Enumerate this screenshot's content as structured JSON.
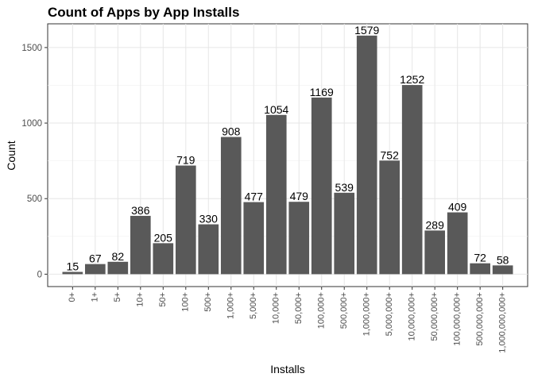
{
  "chart_data": {
    "type": "bar",
    "title": "Count of Apps by App Installs",
    "xlabel": "Installs",
    "ylabel": "Count",
    "categories": [
      "0+",
      "1+",
      "5+",
      "10+",
      "50+",
      "100+",
      "500+",
      "1,000+",
      "5,000+",
      "10,000+",
      "50,000+",
      "100,000+",
      "500,000+",
      "1,000,000+",
      "5,000,000+",
      "10,000,000+",
      "50,000,000+",
      "100,000,000+",
      "500,000,000+",
      "1,000,000,000+"
    ],
    "values": [
      15,
      67,
      82,
      386,
      205,
      719,
      330,
      908,
      477,
      1054,
      479,
      1169,
      539,
      1579,
      752,
      1252,
      289,
      409,
      72,
      58
    ],
    "y_ticks": [
      0,
      500,
      1000,
      1500
    ],
    "ylim": [
      -82,
      1657
    ],
    "bar_color": "#595959",
    "grid": true,
    "data_labels": true,
    "x_tick_rotation": "vertical"
  }
}
